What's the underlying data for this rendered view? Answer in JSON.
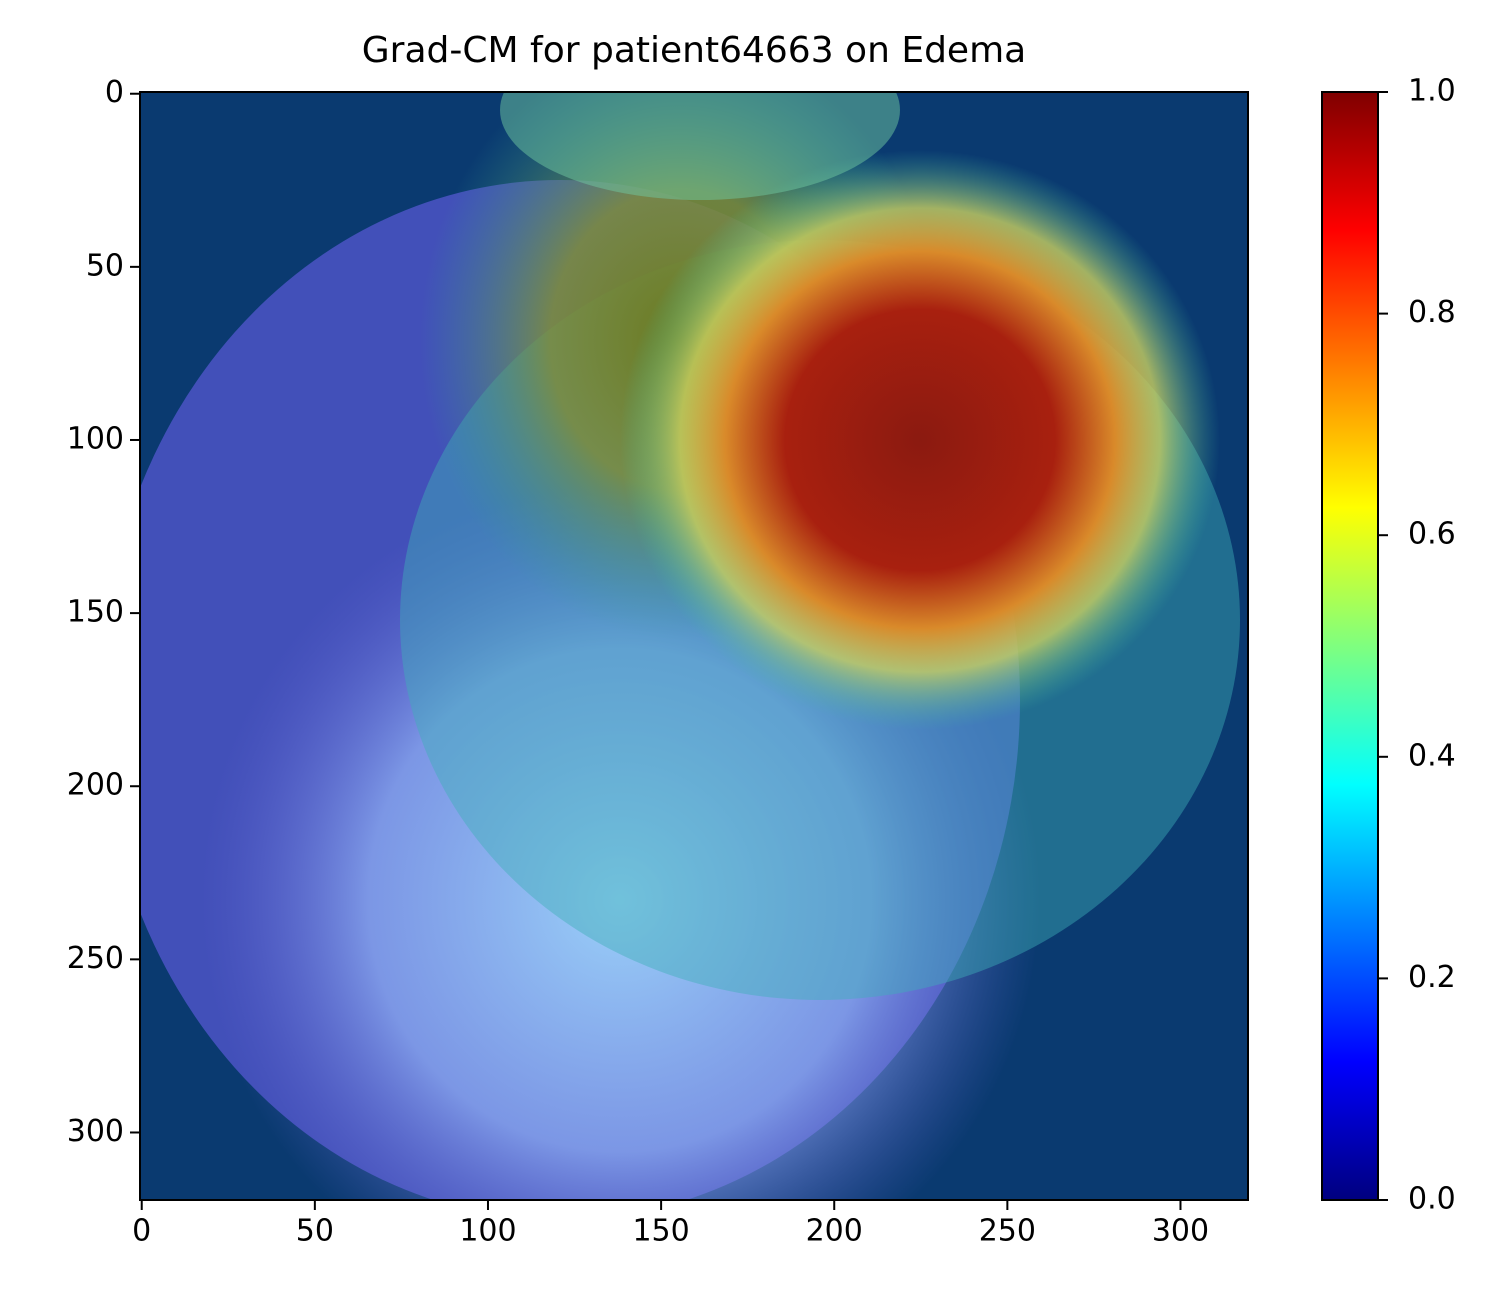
{
  "chart_data": {
    "type": "heatmap",
    "title": "Grad-CM for patient64663 on Edema",
    "xlim": [
      -0.5,
      319.5
    ],
    "xticks": [
      0,
      50,
      100,
      150,
      200,
      250,
      300
    ],
    "ylim": [
      319.5,
      -0.5
    ],
    "yticks": [
      0,
      50,
      100,
      150,
      200,
      250,
      300
    ],
    "colormap": "jet",
    "colorbar": {
      "clim": [
        0,
        1
      ],
      "ticks": [
        {
          "value": 0,
          "label": "0.0"
        },
        0.2,
        0.4,
        0.6,
        0.8,
        {
          "value": 1,
          "label": "1.0"
        }
      ]
    }
  }
}
